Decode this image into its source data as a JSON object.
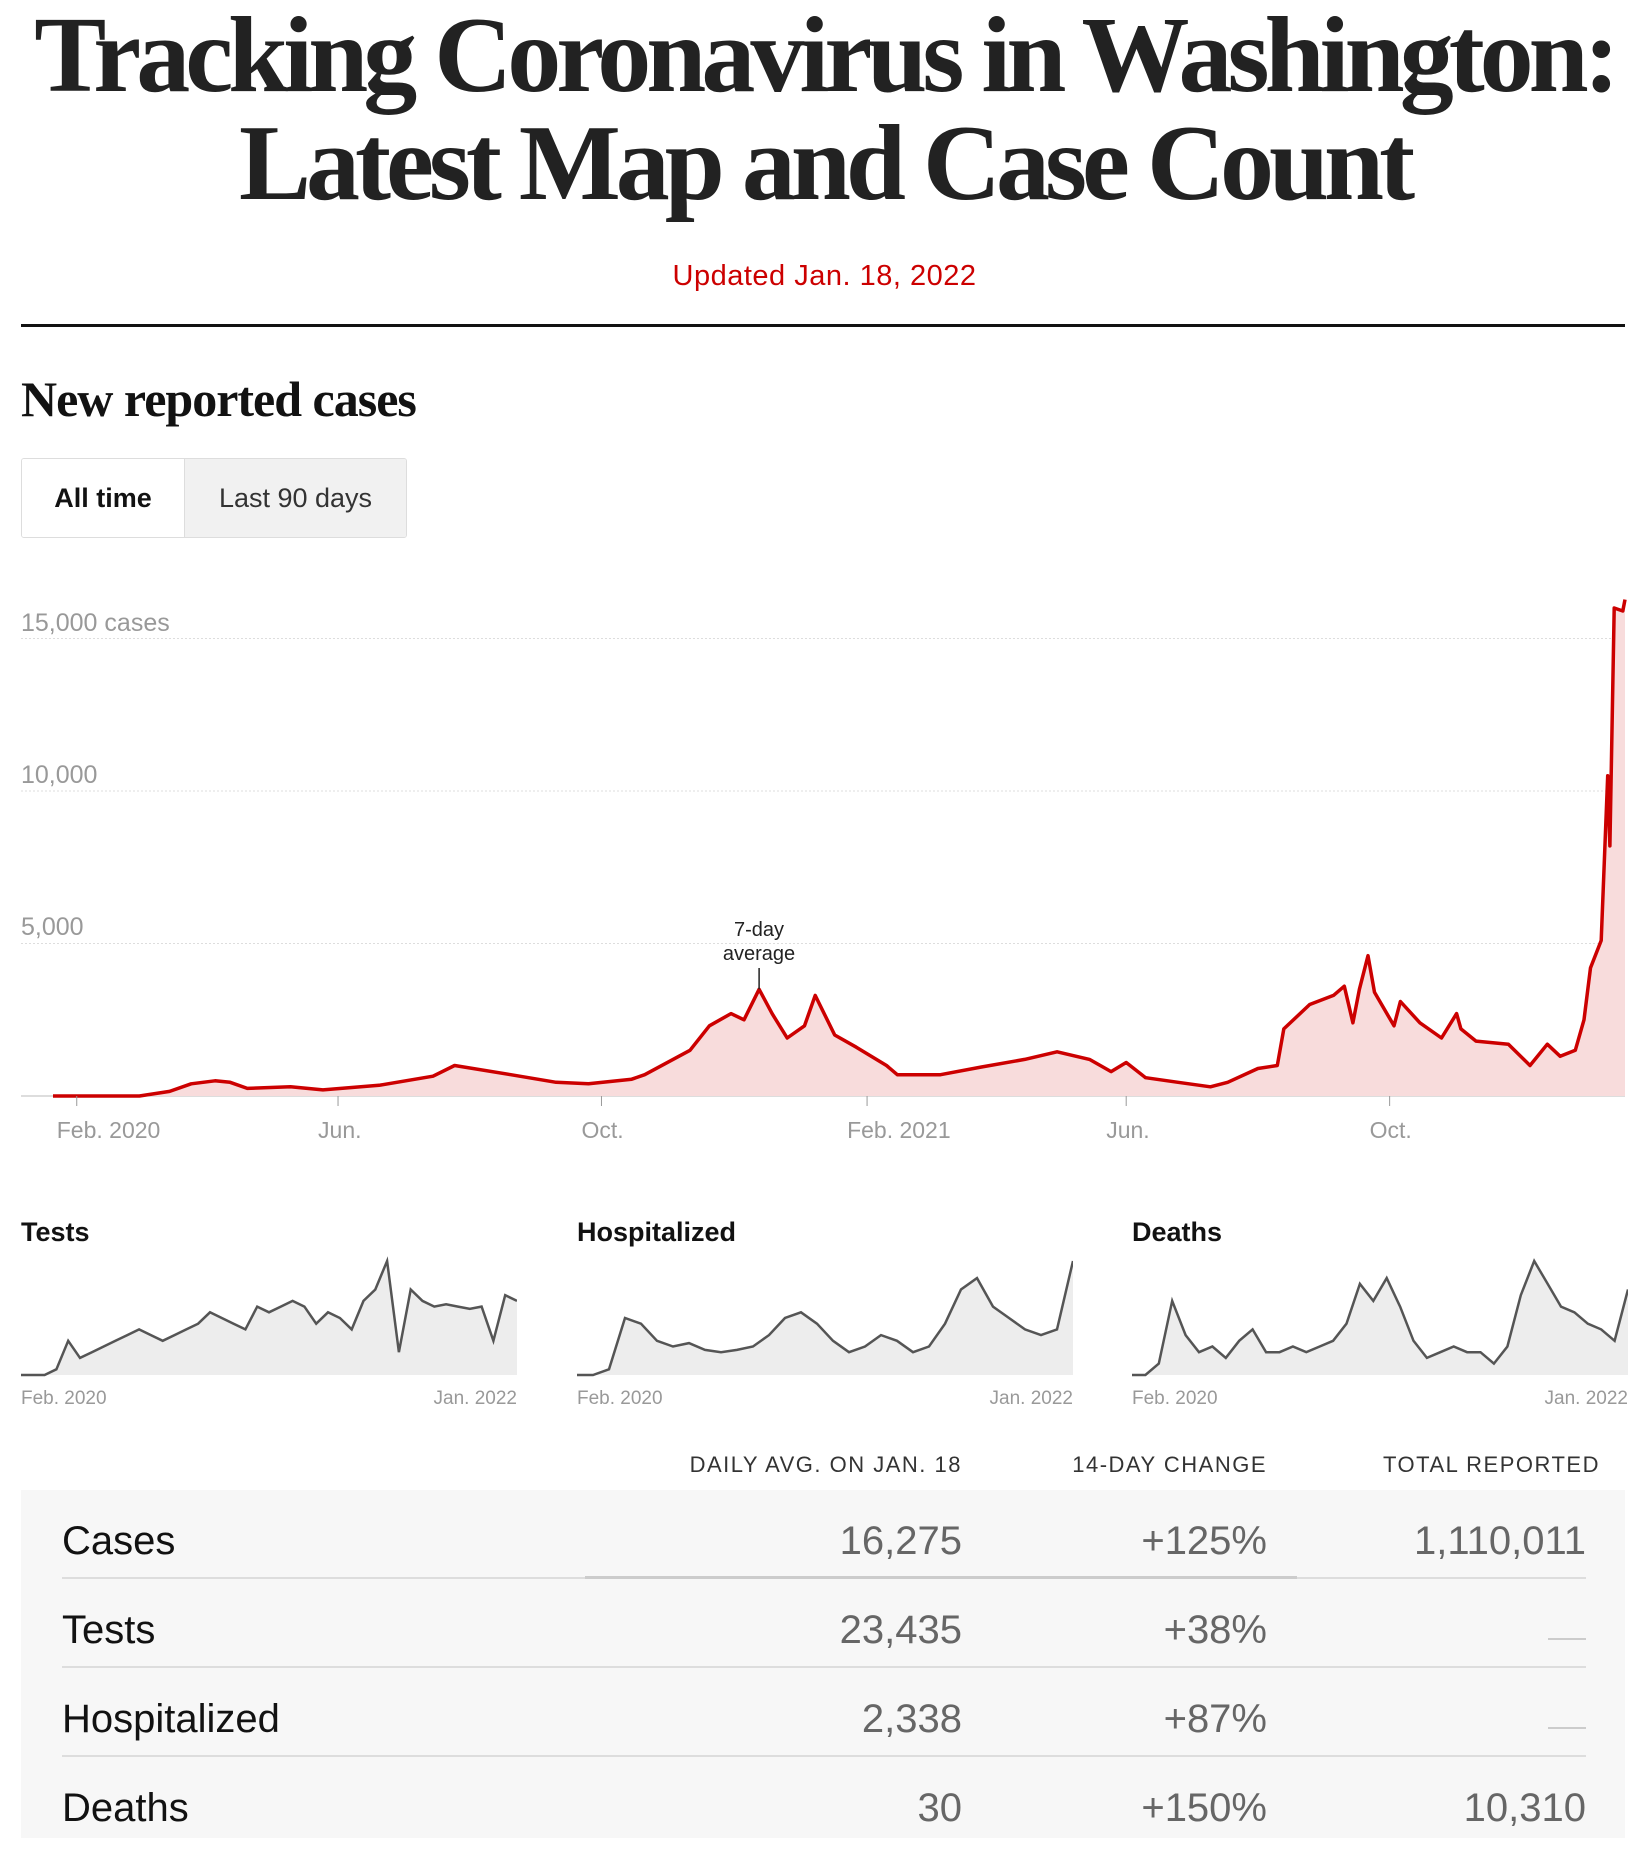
{
  "header": {
    "title_line1": "Tracking Coronavirus in Washington:",
    "title_line2": "Latest Map and Case Count",
    "updated": "Updated Jan. 18, 2022"
  },
  "section": {
    "title": "New reported cases",
    "toggle": [
      {
        "label": "All time",
        "active": true
      },
      {
        "label": "Last 90 days",
        "active": false
      }
    ]
  },
  "colors": {
    "accent_red": "#cc0000",
    "area_fill": "#f8dcdc",
    "spark_line": "#555555",
    "spark_fill": "#ededed"
  },
  "chart_data": [
    {
      "type": "area",
      "title": "New reported cases",
      "ylabel": "cases",
      "ylim": [
        0,
        16500
      ],
      "y_ticks": [
        {
          "value": 15000,
          "label": "15,000 cases"
        },
        {
          "value": 10000,
          "label": "10,000"
        },
        {
          "value": 5000,
          "label": "5,000"
        }
      ],
      "x_ticks": [
        {
          "date": "2020-02-01",
          "label": "Feb. 2020"
        },
        {
          "date": "2020-06-01",
          "label": "Jun."
        },
        {
          "date": "2020-10-01",
          "label": "Oct."
        },
        {
          "date": "2021-02-01",
          "label": "Feb. 2021"
        },
        {
          "date": "2021-06-01",
          "label": "Jun."
        },
        {
          "date": "2021-10-01",
          "label": "Oct."
        }
      ],
      "xlim": [
        "2020-01-21",
        "2022-01-18"
      ],
      "grid": true,
      "annotation": {
        "date": "2020-12-13",
        "label_line1": "7-day",
        "label_line2": "average"
      },
      "series": [
        {
          "points": [
            [
              "2020-01-21",
              0
            ],
            [
              "2020-03-01",
              0
            ],
            [
              "2020-03-15",
              150
            ],
            [
              "2020-03-25",
              400
            ],
            [
              "2020-04-05",
              500
            ],
            [
              "2020-04-12",
              450
            ],
            [
              "2020-04-20",
              250
            ],
            [
              "2020-05-10",
              300
            ],
            [
              "2020-05-25",
              200
            ],
            [
              "2020-06-20",
              350
            ],
            [
              "2020-07-15",
              650
            ],
            [
              "2020-07-25",
              1000
            ],
            [
              "2020-08-20",
              700
            ],
            [
              "2020-09-10",
              450
            ],
            [
              "2020-09-25",
              400
            ],
            [
              "2020-10-15",
              550
            ],
            [
              "2020-10-21",
              700
            ],
            [
              "2020-11-11",
              1500
            ],
            [
              "2020-11-20",
              2300
            ],
            [
              "2020-11-30",
              2700
            ],
            [
              "2020-12-06",
              2500
            ],
            [
              "2020-12-13",
              3500
            ],
            [
              "2020-12-19",
              2700
            ],
            [
              "2020-12-26",
              1900
            ],
            [
              "2021-01-03",
              2300
            ],
            [
              "2021-01-08",
              3300
            ],
            [
              "2021-01-17",
              2000
            ],
            [
              "2021-01-27",
              1600
            ],
            [
              "2021-02-10",
              1000
            ],
            [
              "2021-02-15",
              700
            ],
            [
              "2021-03-07",
              700
            ],
            [
              "2021-03-26",
              950
            ],
            [
              "2021-04-15",
              1200
            ],
            [
              "2021-04-30",
              1450
            ],
            [
              "2021-05-15",
              1200
            ],
            [
              "2021-05-25",
              800
            ],
            [
              "2021-06-01",
              1100
            ],
            [
              "2021-06-10",
              600
            ],
            [
              "2021-06-25",
              450
            ],
            [
              "2021-07-10",
              300
            ],
            [
              "2021-07-18",
              450
            ],
            [
              "2021-08-01",
              900
            ],
            [
              "2021-08-10",
              1000
            ],
            [
              "2021-08-13",
              2200
            ],
            [
              "2021-08-25",
              3000
            ],
            [
              "2021-09-05",
              3300
            ],
            [
              "2021-09-10",
              3600
            ],
            [
              "2021-09-14",
              2400
            ],
            [
              "2021-09-17",
              3500
            ],
            [
              "2021-09-21",
              4600
            ],
            [
              "2021-09-24",
              3400
            ],
            [
              "2021-10-03",
              2300
            ],
            [
              "2021-10-06",
              3100
            ],
            [
              "2021-10-15",
              2400
            ],
            [
              "2021-10-25",
              1900
            ],
            [
              "2021-11-01",
              2700
            ],
            [
              "2021-11-03",
              2200
            ],
            [
              "2021-11-10",
              1800
            ],
            [
              "2021-11-25",
              1700
            ],
            [
              "2021-12-05",
              1000
            ],
            [
              "2021-12-13",
              1700
            ],
            [
              "2021-12-19",
              1300
            ],
            [
              "2021-12-26",
              1500
            ],
            [
              "2021-12-30",
              2500
            ],
            [
              "2022-01-02",
              4200
            ],
            [
              "2022-01-07",
              5100
            ],
            [
              "2022-01-10",
              10500
            ],
            [
              "2022-01-11",
              8200
            ],
            [
              "2022-01-13",
              16000
            ],
            [
              "2022-01-17",
              15900
            ],
            [
              "2022-01-18",
              16275
            ]
          ]
        }
      ]
    },
    {
      "type": "area",
      "title": "Tests",
      "x_labels": [
        "Feb. 2020",
        "Jan. 2022"
      ],
      "relative_values": [
        0,
        0,
        0,
        0.05,
        0.3,
        0.15,
        0.2,
        0.25,
        0.3,
        0.35,
        0.4,
        0.35,
        0.3,
        0.35,
        0.4,
        0.45,
        0.55,
        0.5,
        0.45,
        0.4,
        0.6,
        0.55,
        0.6,
        0.65,
        0.6,
        0.45,
        0.55,
        0.5,
        0.4,
        0.65,
        0.75,
        1.0,
        0.2,
        0.75,
        0.65,
        0.6,
        0.62,
        0.6,
        0.58,
        0.6,
        0.3,
        0.7,
        0.65
      ]
    },
    {
      "type": "area",
      "title": "Hospitalized",
      "x_labels": [
        "Feb. 2020",
        "Jan. 2022"
      ],
      "relative_values": [
        0,
        0,
        0.05,
        0.5,
        0.45,
        0.3,
        0.25,
        0.28,
        0.22,
        0.2,
        0.22,
        0.25,
        0.35,
        0.5,
        0.55,
        0.45,
        0.3,
        0.2,
        0.25,
        0.35,
        0.3,
        0.2,
        0.25,
        0.45,
        0.75,
        0.85,
        0.6,
        0.5,
        0.4,
        0.35,
        0.4,
        1.0
      ]
    },
    {
      "type": "area",
      "title": "Deaths",
      "x_labels": [
        "Feb. 2020",
        "Jan. 2022"
      ],
      "relative_values": [
        0,
        0,
        0.1,
        0.65,
        0.35,
        0.2,
        0.25,
        0.15,
        0.3,
        0.4,
        0.2,
        0.2,
        0.25,
        0.2,
        0.25,
        0.3,
        0.45,
        0.8,
        0.65,
        0.85,
        0.6,
        0.3,
        0.15,
        0.2,
        0.25,
        0.2,
        0.2,
        0.1,
        0.25,
        0.7,
        1.0,
        0.8,
        0.6,
        0.55,
        0.45,
        0.4,
        0.3,
        0.75
      ]
    }
  ],
  "table": {
    "headers": [
      "DAILY AVG. ON JAN. 18",
      "14-DAY CHANGE",
      "TOTAL REPORTED"
    ],
    "rows": [
      {
        "label": "Cases",
        "daily_avg": "16,275",
        "change": "+125%",
        "total": "1,110,011"
      },
      {
        "label": "Tests",
        "daily_avg": "23,435",
        "change": "+38%",
        "total": "—"
      },
      {
        "label": "Hospitalized",
        "daily_avg": "2,338",
        "change": "+87%",
        "total": "—"
      },
      {
        "label": "Deaths",
        "daily_avg": "30",
        "change": "+150%",
        "total": "10,310"
      }
    ]
  }
}
